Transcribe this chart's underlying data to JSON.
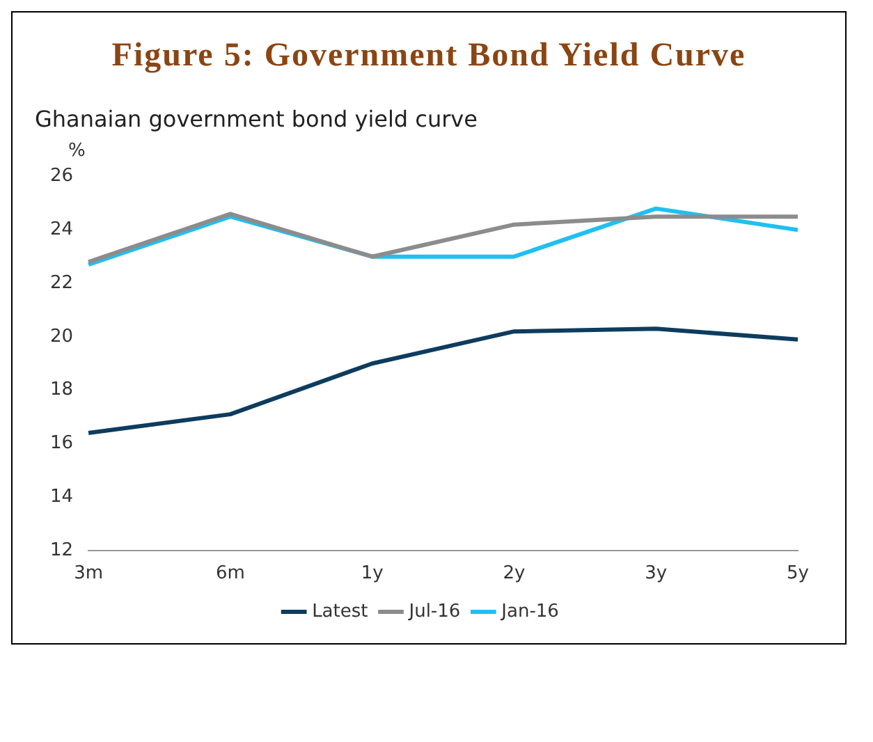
{
  "chart_data": {
    "type": "line",
    "title": "Figure 5: Government Bond Yield Curve",
    "subtitle": "Ghanaian government bond yield curve",
    "ylabel": "%",
    "categories": [
      "3m",
      "6m",
      "1y",
      "2y",
      "3y",
      "5y"
    ],
    "series": [
      {
        "name": "Latest",
        "color": "#0d3c5e",
        "values": [
          16.4,
          17.1,
          19.0,
          20.2,
          20.3,
          19.9
        ]
      },
      {
        "name": "Jul-16",
        "color": "#8c8c8c",
        "values": [
          22.8,
          24.6,
          23.0,
          24.2,
          24.5,
          24.5
        ]
      },
      {
        "name": "Jan-16",
        "color": "#1fc0f0",
        "values": [
          22.7,
          24.5,
          23.0,
          23.0,
          24.8,
          24.0
        ]
      }
    ],
    "ylim": [
      12,
      26
    ],
    "yticks": [
      12,
      14,
      16,
      18,
      20,
      22,
      24,
      26
    ],
    "grid": false,
    "legend": "bottom",
    "marker": "none",
    "line_style": "solid"
  }
}
